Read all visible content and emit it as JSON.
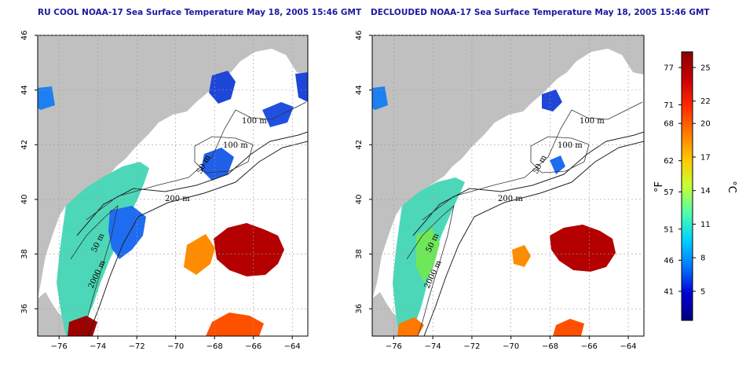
{
  "titles": {
    "left": "RU COOL NOAA-17 Sea Surface Temperature May 18, 2005 15:46 GMT",
    "right": "DECLOUDED NOAA-17 Sea Surface Temperature May 18, 2005 15:46 GMT"
  },
  "axes": {
    "lon_ticks": [
      -76,
      -74,
      -72,
      -70,
      -68,
      -66,
      -64
    ],
    "lat_ticks": [
      36,
      38,
      40,
      42,
      44,
      46
    ],
    "lon_range": [
      -77.1,
      -63.2
    ],
    "lat_range": [
      35,
      46
    ]
  },
  "contour_labels": [
    "100 m",
    "100 m",
    "50 m",
    "200 m",
    "50 m",
    "2000 m"
  ],
  "colorbar": {
    "celsius_ticks": [
      "25",
      "22",
      "20",
      "17",
      "14",
      "11",
      "8",
      "5"
    ],
    "fahrenheit_ticks": [
      "77",
      "71",
      "68",
      "62",
      "57",
      "51",
      "46",
      "41"
    ],
    "celsius_unit": "°C",
    "fahrenheit_unit": "°F",
    "colors": [
      "#8b0000",
      "#c80000",
      "#ff2800",
      "#ff7800",
      "#ffc800",
      "#c8ff32",
      "#50ffaa",
      "#00d2ff",
      "#0078ff",
      "#0000d2",
      "#000080"
    ]
  },
  "colors": {
    "land": "#c0c0c0",
    "ocean": "#ffffff",
    "grid": "#9a9a9a",
    "title": "#1a1aa0"
  }
}
